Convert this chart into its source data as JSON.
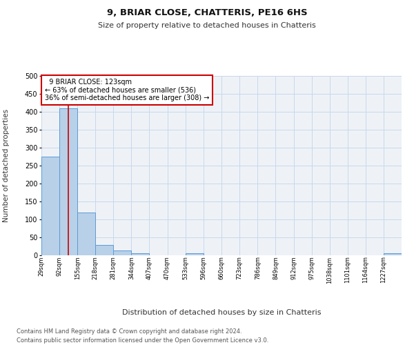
{
  "title1": "9, BRIAR CLOSE, CHATTERIS, PE16 6HS",
  "title2": "Size of property relative to detached houses in Chatteris",
  "xlabel": "Distribution of detached houses by size in Chatteris",
  "ylabel": "Number of detached properties",
  "footer1": "Contains HM Land Registry data © Crown copyright and database right 2024.",
  "footer2": "Contains public sector information licensed under the Open Government Licence v3.0.",
  "property_line": 123,
  "annotation_title": "9 BRIAR CLOSE: 123sqm",
  "annotation_line1": "← 63% of detached houses are smaller (536)",
  "annotation_line2": "36% of semi-detached houses are larger (308) →",
  "bar_edges": [
    29,
    92,
    155,
    218,
    281,
    344,
    407,
    470,
    533,
    596,
    660,
    723,
    786,
    849,
    912,
    975,
    1038,
    1101,
    1164,
    1227,
    1290
  ],
  "bar_heights": [
    275,
    410,
    120,
    28,
    14,
    5,
    0,
    0,
    5,
    0,
    0,
    0,
    0,
    0,
    0,
    0,
    0,
    0,
    0,
    5
  ],
  "bar_color": "#b8d0e8",
  "bar_edge_color": "#5b9bd5",
  "line_color": "#cc0000",
  "annotation_box_color": "#cc0000",
  "grid_color": "#c8d8ea",
  "ylim": [
    0,
    500
  ],
  "yticks": [
    0,
    50,
    100,
    150,
    200,
    250,
    300,
    350,
    400,
    450,
    500
  ],
  "background_color": "#eef2f7"
}
